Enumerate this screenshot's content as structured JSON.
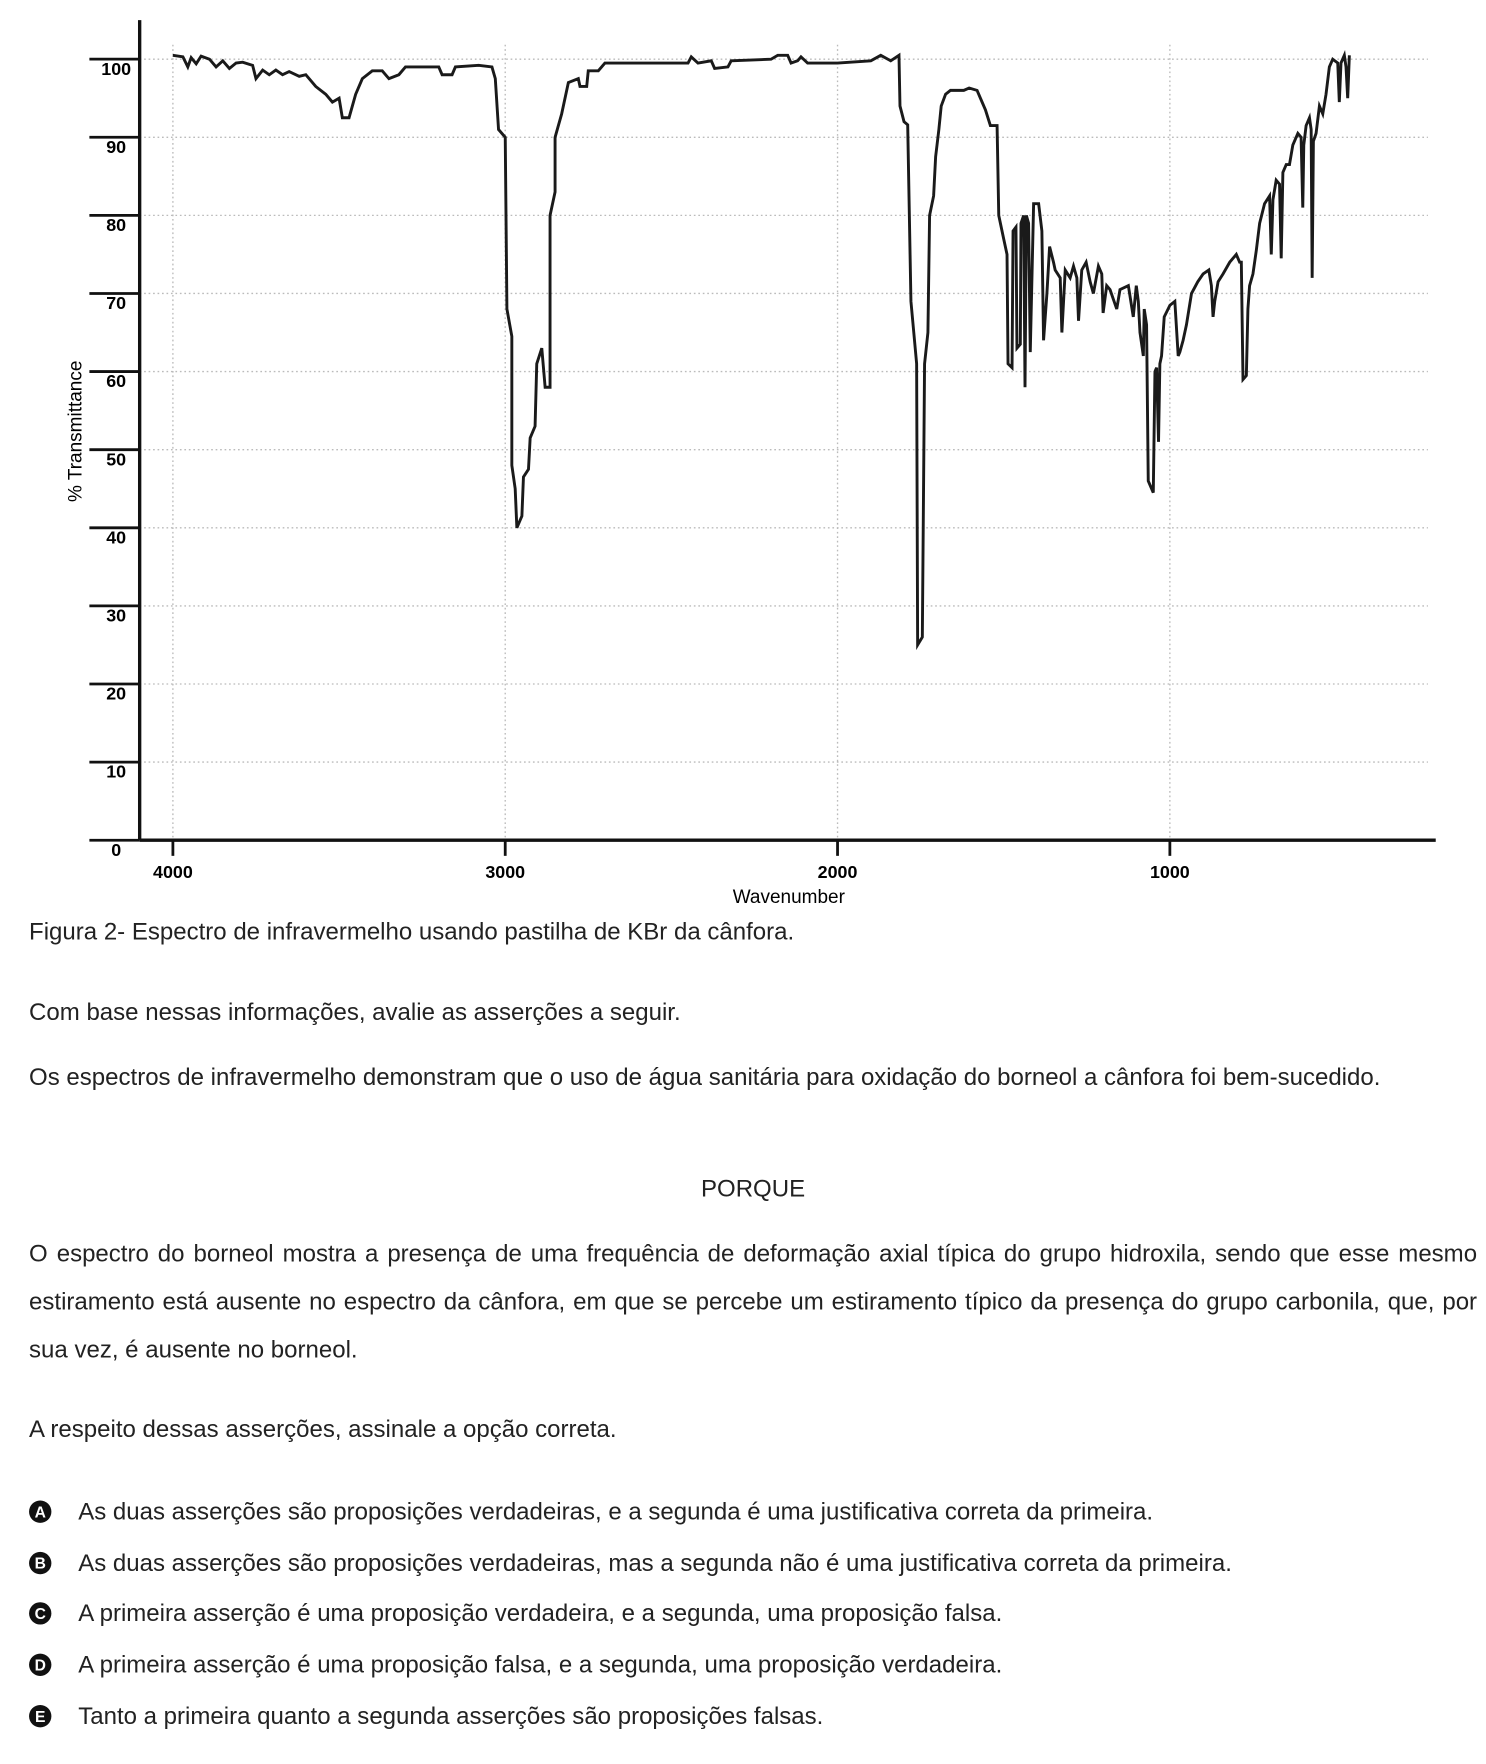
{
  "chart_data": {
    "type": "line",
    "x_label": "Wavenumber",
    "y_label": "% Transmittance",
    "color": "#1a1a1a",
    "grid": true,
    "xlim": [
      4100,
      200
    ],
    "ylim": [
      0,
      105
    ],
    "xticks": [
      4000,
      3000,
      2000,
      1000
    ],
    "yticks": [
      0,
      10,
      20,
      30,
      40,
      50,
      60,
      70,
      80,
      90,
      100
    ],
    "x": [
      4000,
      3970,
      3955,
      3945,
      3930,
      3915,
      3890,
      3870,
      3850,
      3830,
      3810,
      3790,
      3760,
      3750,
      3730,
      3710,
      3690,
      3670,
      3650,
      3620,
      3600,
      3570,
      3540,
      3520,
      3500,
      3490,
      3470,
      3450,
      3430,
      3400,
      3370,
      3350,
      3320,
      3300,
      3200,
      3190,
      3160,
      3150,
      3080,
      3040,
      3030,
      3020,
      3000,
      2995,
      2980,
      2980,
      2970,
      2965,
      2950,
      2945,
      2930,
      2925,
      2910,
      2905,
      2890,
      2880,
      2865,
      2865,
      2850,
      2850,
      2830,
      2810,
      2780,
      2775,
      2755,
      2750,
      2720,
      2700,
      2450,
      2440,
      2420,
      2380,
      2370,
      2330,
      2320,
      2200,
      2180,
      2150,
      2140,
      2120,
      2110,
      2090,
      2000,
      1900,
      1870,
      1840,
      1815,
      1812,
      1800,
      1789,
      1779,
      1762,
      1759,
      1745,
      1738,
      1728,
      1723,
      1711,
      1705,
      1695,
      1688,
      1675,
      1660,
      1620,
      1604,
      1580,
      1565,
      1555,
      1540,
      1520,
      1515,
      1500,
      1490,
      1487,
      1475,
      1472,
      1463,
      1460,
      1450,
      1448,
      1440,
      1436,
      1432,
      1425,
      1420,
      1410,
      1395,
      1385,
      1380,
      1370,
      1362,
      1350,
      1345,
      1330,
      1325,
      1315,
      1300,
      1290,
      1280,
      1275,
      1265,
      1252,
      1240,
      1230,
      1215,
      1205,
      1201,
      1190,
      1180,
      1168,
      1160,
      1150,
      1125,
      1110,
      1101,
      1095,
      1090,
      1080,
      1077,
      1070,
      1065,
      1050,
      1045,
      1040,
      1034,
      1030,
      1025,
      1017,
      1000,
      985,
      975,
      970,
      960,
      950,
      935,
      916,
      900,
      883,
      875,
      870,
      865,
      855,
      840,
      820,
      800,
      790,
      785,
      780,
      770,
      765,
      760,
      750,
      740,
      730,
      715,
      700,
      695,
      690,
      680,
      670,
      665,
      660,
      650,
      640,
      630,
      615,
      605,
      600,
      597,
      590,
      580,
      575,
      572,
      568,
      560,
      550,
      540,
      530,
      520,
      510,
      495,
      490,
      485,
      475,
      470,
      465,
      460
    ],
    "values": [
      100.5,
      100.3,
      99,
      100.2,
      99.4,
      100.4,
      100,
      99,
      99.8,
      98.8,
      99.5,
      99.6,
      99.2,
      97.5,
      98.6,
      98,
      98.6,
      98,
      98.4,
      97.8,
      98,
      96.5,
      95.5,
      94.5,
      95,
      92.5,
      92.5,
      95.5,
      97.5,
      98.5,
      98.5,
      97.5,
      98,
      99,
      99,
      98,
      98,
      99,
      99.2,
      99,
      97.5,
      91,
      90,
      68,
      64.5,
      48,
      45,
      40,
      41.5,
      46.5,
      47.5,
      51.5,
      53,
      61,
      63,
      58,
      58,
      80,
      83,
      90,
      93,
      97,
      97.5,
      96.5,
      96.5,
      98.5,
      98.5,
      99.5,
      99.5,
      100.3,
      99.5,
      99.8,
      98.8,
      99,
      99.8,
      100,
      100.5,
      100.5,
      99.5,
      99.8,
      100.3,
      99.5,
      99.5,
      99.8,
      100.5,
      99.8,
      100.5,
      94,
      92,
      91.6,
      69,
      61,
      25,
      26,
      61,
      65,
      80,
      82.5,
      87.5,
      91,
      94,
      95.5,
      96,
      96,
      96.3,
      96,
      94.5,
      93.5,
      91.5,
      91.5,
      80,
      77,
      75,
      61,
      60.5,
      78,
      78.5,
      63,
      63.5,
      79,
      80,
      58,
      80,
      79,
      62.5,
      81.5,
      81.5,
      78,
      64,
      70,
      76,
      74,
      73,
      72,
      65,
      73,
      72,
      73.5,
      72,
      66.5,
      73,
      74,
      71.5,
      70,
      73.5,
      72.5,
      67.5,
      71,
      70.5,
      69,
      68,
      70.5,
      71,
      67,
      71,
      69,
      65,
      62,
      68,
      66,
      46,
      44.5,
      60,
      60.5,
      51,
      61,
      62,
      67,
      68.5,
      69,
      62,
      62.5,
      64,
      66,
      70,
      71.5,
      72.5,
      73,
      71,
      67,
      69,
      71.5,
      72.5,
      74,
      75,
      74,
      74,
      59,
      59.5,
      68,
      71,
      72.5,
      75.5,
      79,
      81.5,
      82.5,
      75,
      82,
      84.5,
      84,
      74.5,
      85.5,
      86.5,
      86.5,
      89,
      90.5,
      90,
      81,
      89,
      91.5,
      92.5,
      91,
      72,
      89.5,
      90.5,
      94,
      93,
      95.5,
      99,
      100,
      99.5,
      94.5,
      99.5,
      100.5,
      99,
      95,
      100.5
    ]
  },
  "document": {
    "caption": "Figura 2- Espectro de infravermelho usando pastilha de KBr da cânfora.",
    "intro": "Com base nessas informações, avalie as asserções a seguir.",
    "assertion1": "Os espectros de infravermelho demonstram que o uso de água sanitária para oxidação do borneol a cânfora foi bem-sucedido.",
    "connector": "PORQUE",
    "assertion2": "O espectro do borneol mostra a presença de uma frequência de deformação axial típica do grupo hidroxila, sendo que esse mesmo estiramento está ausente no espectro da cânfora, em que se percebe um estiramento típico da presença do grupo carbonila, que, por sua vez, é ausente no borneol.",
    "question": "A respeito dessas asserções, assinale a opção correta.",
    "options": [
      {
        "letter": "A",
        "text": "As duas asserções são proposições verdadeiras, e a segunda é uma justificativa correta da primeira."
      },
      {
        "letter": "B",
        "text": "As duas asserções são proposições verdadeiras, mas a segunda não é uma justificativa correta da primeira."
      },
      {
        "letter": "C",
        "text": "A primeira asserção é uma proposição verdadeira, e a segunda, uma proposição falsa."
      },
      {
        "letter": "D",
        "text": "A primeira asserção é uma proposição falsa, e a segunda, uma proposição verdadeira."
      },
      {
        "letter": "E",
        "text": "Tanto a primeira quanto a segunda asserções são proposições falsas."
      }
    ]
  }
}
